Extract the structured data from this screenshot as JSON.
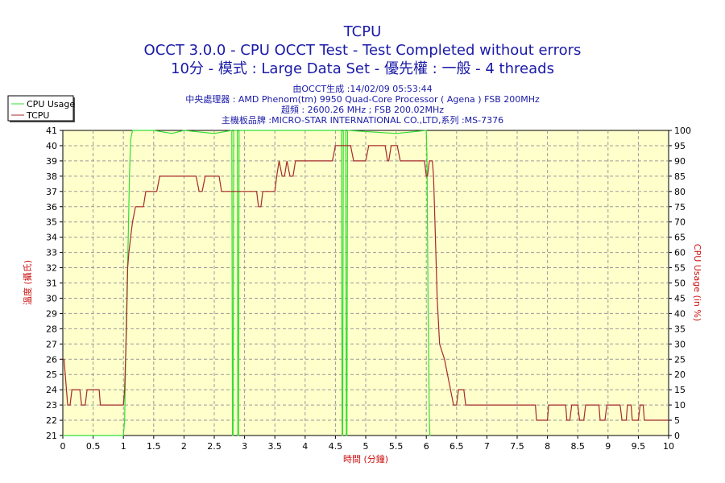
{
  "chart_data": {
    "type": "line",
    "title": "TCPU",
    "subtitle_lines": [
      "OCCT 3.0.0 - CPU OCCT Test - Test Completed without errors",
      "10分 - 模式 : Large Data Set - 優先權 : 一般 - 4 threads"
    ],
    "info_lines": [
      "由OCCT生成 :14/02/09 05:53:44",
      "中央處理器 : AMD Phenom(tm) 9950 Quad-Core Processor ( Agena ) FSB 200MHz",
      "超頻 : 2600.26 MHz ; FSB 200.02MHz",
      "主機板品牌 :MICRO-STAR INTERNATIONAL CO.,LTD,系列 :MS-7376"
    ],
    "xlabel": "時間 (分鐘)",
    "ylabel_left": "溫度 (攝氏)",
    "ylabel_right": "CPU Usage (in %)",
    "xlim": [
      0,
      10
    ],
    "ylim_left": [
      21,
      41
    ],
    "ylim_right": [
      0,
      100
    ],
    "x_ticks": [
      "0",
      "0.5",
      "1",
      "1.5",
      "2",
      "2.5",
      "3",
      "3.5",
      "4",
      "4.5",
      "5",
      "5.5",
      "6",
      "6.5",
      "7",
      "7.5",
      "8",
      "8.5",
      "9",
      "9.5",
      "10"
    ],
    "y_left_ticks": [
      "21",
      "22",
      "23",
      "24",
      "25",
      "26",
      "27",
      "28",
      "29",
      "30",
      "31",
      "32",
      "33",
      "34",
      "35",
      "36",
      "37",
      "38",
      "39",
      "40",
      "41"
    ],
    "y_right_ticks": [
      "0",
      "5",
      "10",
      "15",
      "20",
      "25",
      "30",
      "35",
      "40",
      "45",
      "50",
      "55",
      "60",
      "65",
      "70",
      "75",
      "80",
      "85",
      "90",
      "95",
      "100"
    ],
    "grid": true,
    "legend_position": "top-left",
    "series": [
      {
        "name": "CPU Usage",
        "axis": "right",
        "color": "#33dd33",
        "points": [
          [
            0,
            0
          ],
          [
            1.0,
            0
          ],
          [
            1.02,
            5
          ],
          [
            1.05,
            40
          ],
          [
            1.08,
            65
          ],
          [
            1.1,
            85
          ],
          [
            1.12,
            97
          ],
          [
            1.15,
            100
          ],
          [
            1.5,
            100
          ],
          [
            1.8,
            99
          ],
          [
            2.0,
            100
          ],
          [
            2.5,
            99
          ],
          [
            2.79,
            100
          ],
          [
            2.8,
            0
          ],
          [
            2.81,
            0
          ],
          [
            2.82,
            100
          ],
          [
            2.88,
            100
          ],
          [
            2.89,
            0
          ],
          [
            2.9,
            0
          ],
          [
            2.91,
            100
          ],
          [
            4.6,
            100
          ],
          [
            4.61,
            0
          ],
          [
            4.62,
            0
          ],
          [
            4.63,
            100
          ],
          [
            4.67,
            100
          ],
          [
            4.68,
            0
          ],
          [
            4.69,
            0
          ],
          [
            4.7,
            100
          ],
          [
            5.5,
            99
          ],
          [
            6.0,
            100
          ],
          [
            6.01,
            92
          ],
          [
            6.03,
            40
          ],
          [
            6.05,
            5
          ],
          [
            6.06,
            0
          ],
          [
            6.07,
            0
          ]
        ]
      },
      {
        "name": "TCPU",
        "axis": "left",
        "color": "#a52a2a",
        "points": [
          [
            0,
            26
          ],
          [
            0.02,
            26
          ],
          [
            0.04,
            25
          ],
          [
            0.06,
            24
          ],
          [
            0.08,
            23
          ],
          [
            0.12,
            23
          ],
          [
            0.15,
            24
          ],
          [
            0.28,
            24
          ],
          [
            0.31,
            23
          ],
          [
            0.37,
            23
          ],
          [
            0.4,
            24
          ],
          [
            0.6,
            24
          ],
          [
            0.62,
            23
          ],
          [
            1.0,
            23
          ],
          [
            1.02,
            24
          ],
          [
            1.05,
            28
          ],
          [
            1.07,
            32
          ],
          [
            1.09,
            33
          ],
          [
            1.12,
            34
          ],
          [
            1.15,
            35
          ],
          [
            1.2,
            36
          ],
          [
            1.33,
            36
          ],
          [
            1.37,
            37
          ],
          [
            1.55,
            37
          ],
          [
            1.6,
            38
          ],
          [
            2.2,
            38
          ],
          [
            2.25,
            37
          ],
          [
            2.3,
            37
          ],
          [
            2.35,
            38
          ],
          [
            2.58,
            38
          ],
          [
            2.62,
            37
          ],
          [
            3.2,
            37
          ],
          [
            3.23,
            36
          ],
          [
            3.27,
            36
          ],
          [
            3.3,
            37
          ],
          [
            3.5,
            37
          ],
          [
            3.53,
            38
          ],
          [
            3.57,
            39
          ],
          [
            3.62,
            38
          ],
          [
            3.66,
            38
          ],
          [
            3.7,
            39
          ],
          [
            3.75,
            38
          ],
          [
            3.8,
            38
          ],
          [
            3.84,
            39
          ],
          [
            4.45,
            39
          ],
          [
            4.5,
            40
          ],
          [
            4.75,
            40
          ],
          [
            4.8,
            39
          ],
          [
            5.0,
            39
          ],
          [
            5.05,
            40
          ],
          [
            5.32,
            40
          ],
          [
            5.36,
            39
          ],
          [
            5.38,
            39
          ],
          [
            5.42,
            40
          ],
          [
            5.52,
            40
          ],
          [
            5.57,
            39
          ],
          [
            5.97,
            39
          ],
          [
            6.0,
            38
          ],
          [
            6.02,
            38
          ],
          [
            6.05,
            39
          ],
          [
            6.1,
            39
          ],
          [
            6.12,
            38
          ],
          [
            6.15,
            34
          ],
          [
            6.18,
            30
          ],
          [
            6.22,
            27
          ],
          [
            6.3,
            26
          ],
          [
            6.35,
            25
          ],
          [
            6.4,
            24
          ],
          [
            6.45,
            23
          ],
          [
            6.5,
            23
          ],
          [
            6.53,
            24
          ],
          [
            6.62,
            24
          ],
          [
            6.65,
            23
          ],
          [
            7.8,
            23
          ],
          [
            7.82,
            22
          ],
          [
            8.0,
            22
          ],
          [
            8.02,
            23
          ],
          [
            8.3,
            23
          ],
          [
            8.32,
            22
          ],
          [
            8.37,
            22
          ],
          [
            8.4,
            23
          ],
          [
            8.5,
            23
          ],
          [
            8.53,
            22
          ],
          [
            8.6,
            22
          ],
          [
            8.63,
            23
          ],
          [
            8.85,
            23
          ],
          [
            8.87,
            22
          ],
          [
            8.95,
            22
          ],
          [
            8.98,
            23
          ],
          [
            9.2,
            23
          ],
          [
            9.23,
            22
          ],
          [
            9.3,
            22
          ],
          [
            9.32,
            23
          ],
          [
            9.38,
            23
          ],
          [
            9.4,
            22
          ],
          [
            9.5,
            22
          ],
          [
            9.53,
            23
          ],
          [
            9.58,
            23
          ],
          [
            9.6,
            22
          ],
          [
            10.0,
            22
          ]
        ]
      }
    ]
  }
}
